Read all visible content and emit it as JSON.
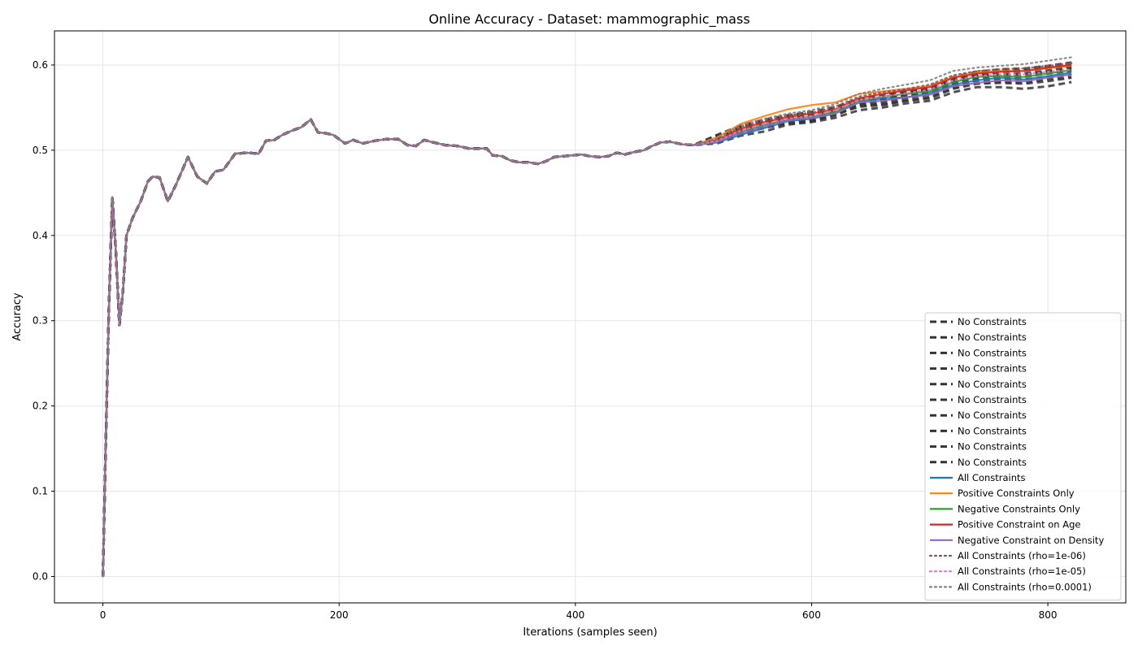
{
  "chart_data": {
    "type": "line",
    "title": "Online Accuracy - Dataset: mammographic_mass",
    "xlabel": "Iterations (samples seen)",
    "ylabel": "Accuracy",
    "xlim": [
      -41,
      866
    ],
    "ylim": [
      -0.031,
      0.64
    ],
    "xticks": [
      0,
      200,
      400,
      600,
      800
    ],
    "yticks": [
      0.0,
      0.1,
      0.2,
      0.3,
      0.4,
      0.5,
      0.6
    ],
    "grid": true,
    "legend_position": "bottom-right",
    "shared_prefix": {
      "x": [
        0,
        2,
        5,
        8,
        11,
        14,
        17,
        20,
        25,
        32,
        38,
        42,
        48,
        55,
        62,
        72,
        80,
        88,
        95,
        102,
        112,
        122,
        132,
        138,
        145,
        152,
        160,
        168,
        176,
        182,
        188,
        195,
        205,
        212,
        220,
        230,
        240,
        250,
        258,
        265,
        272,
        280,
        290,
        300,
        310,
        320,
        325,
        330,
        338,
        345,
        352,
        360,
        368,
        375,
        382,
        390,
        398,
        405,
        412,
        420,
        428,
        435,
        442,
        450,
        458,
        465,
        472,
        480,
        490,
        500
      ],
      "y": [
        0.0,
        0.13,
        0.31,
        0.445,
        0.38,
        0.295,
        0.335,
        0.4,
        0.42,
        0.44,
        0.463,
        0.469,
        0.468,
        0.44,
        0.46,
        0.492,
        0.469,
        0.461,
        0.475,
        0.477,
        0.496,
        0.497,
        0.496,
        0.511,
        0.512,
        0.518,
        0.523,
        0.527,
        0.536,
        0.521,
        0.52,
        0.518,
        0.508,
        0.512,
        0.508,
        0.511,
        0.513,
        0.513,
        0.506,
        0.505,
        0.512,
        0.509,
        0.506,
        0.505,
        0.502,
        0.502,
        0.502,
        0.494,
        0.493,
        0.488,
        0.486,
        0.486,
        0.484,
        0.487,
        0.492,
        0.493,
        0.494,
        0.495,
        0.493,
        0.492,
        0.493,
        0.497,
        0.495,
        0.498,
        0.5,
        0.505,
        0.509,
        0.51,
        0.507,
        0.506
      ]
    },
    "tail_x": [
      500,
      520,
      540,
      560,
      580,
      600,
      620,
      640,
      660,
      680,
      700,
      720,
      740,
      760,
      780,
      800,
      820
    ],
    "series": [
      {
        "name": "No Constraints",
        "style": "dashed",
        "color": "#333333",
        "tail": [
          0.506,
          0.517,
          0.527,
          0.533,
          0.539,
          0.541,
          0.547,
          0.556,
          0.563,
          0.568,
          0.571,
          0.583,
          0.589,
          0.592,
          0.593,
          0.596,
          0.598
        ]
      },
      {
        "name": "No Constraints",
        "style": "dashed",
        "color": "#333333",
        "tail": [
          0.506,
          0.511,
          0.521,
          0.527,
          0.531,
          0.534,
          0.541,
          0.552,
          0.554,
          0.558,
          0.562,
          0.573,
          0.579,
          0.58,
          0.579,
          0.583,
          0.586
        ]
      },
      {
        "name": "No Constraints",
        "style": "dashed",
        "color": "#333333",
        "tail": [
          0.506,
          0.513,
          0.524,
          0.53,
          0.536,
          0.538,
          0.545,
          0.555,
          0.558,
          0.563,
          0.567,
          0.578,
          0.584,
          0.586,
          0.586,
          0.59,
          0.593
        ]
      },
      {
        "name": "No Constraints",
        "style": "dashed",
        "color": "#333333",
        "tail": [
          0.506,
          0.508,
          0.517,
          0.522,
          0.53,
          0.533,
          0.538,
          0.547,
          0.55,
          0.555,
          0.558,
          0.568,
          0.574,
          0.574,
          0.572,
          0.575,
          0.58
        ]
      },
      {
        "name": "No Constraints",
        "style": "dashed",
        "color": "#333333",
        "tail": [
          0.506,
          0.514,
          0.526,
          0.532,
          0.538,
          0.54,
          0.546,
          0.556,
          0.561,
          0.566,
          0.57,
          0.581,
          0.587,
          0.589,
          0.59,
          0.593,
          0.597
        ]
      },
      {
        "name": "No Constraints",
        "style": "dashed",
        "color": "#333333",
        "tail": [
          0.506,
          0.516,
          0.528,
          0.534,
          0.54,
          0.543,
          0.549,
          0.559,
          0.563,
          0.568,
          0.573,
          0.584,
          0.59,
          0.593,
          0.594,
          0.597,
          0.6
        ]
      },
      {
        "name": "No Constraints",
        "style": "dashed",
        "color": "#333333",
        "tail": [
          0.506,
          0.512,
          0.522,
          0.528,
          0.534,
          0.536,
          0.543,
          0.553,
          0.556,
          0.561,
          0.565,
          0.576,
          0.582,
          0.583,
          0.583,
          0.586,
          0.589
        ]
      },
      {
        "name": "No Constraints",
        "style": "dashed",
        "color": "#333333",
        "tail": [
          0.506,
          0.515,
          0.525,
          0.531,
          0.537,
          0.539,
          0.546,
          0.555,
          0.56,
          0.565,
          0.569,
          0.58,
          0.586,
          0.588,
          0.589,
          0.592,
          0.595
        ]
      },
      {
        "name": "No Constraints",
        "style": "dashed",
        "color": "#333333",
        "tail": [
          0.506,
          0.51,
          0.52,
          0.526,
          0.532,
          0.535,
          0.542,
          0.551,
          0.553,
          0.558,
          0.561,
          0.572,
          0.578,
          0.579,
          0.578,
          0.581,
          0.585
        ]
      },
      {
        "name": "No Constraints",
        "style": "dashed",
        "color": "#333333",
        "tail": [
          0.506,
          0.518,
          0.529,
          0.536,
          0.541,
          0.545,
          0.551,
          0.56,
          0.565,
          0.57,
          0.575,
          0.586,
          0.592,
          0.595,
          0.596,
          0.599,
          0.603
        ]
      },
      {
        "name": "All Constraints",
        "style": "solid",
        "color": "#1f77b4",
        "tail": [
          0.506,
          0.509,
          0.518,
          0.526,
          0.534,
          0.537,
          0.543,
          0.556,
          0.561,
          0.562,
          0.567,
          0.577,
          0.582,
          0.585,
          0.583,
          0.587,
          0.591
        ]
      },
      {
        "name": "Positive Constraints Only",
        "style": "solid",
        "color": "#ff7f0e",
        "tail": [
          0.506,
          0.515,
          0.531,
          0.54,
          0.548,
          0.553,
          0.556,
          0.566,
          0.569,
          0.572,
          0.575,
          0.586,
          0.591,
          0.593,
          0.593,
          0.596,
          0.599
        ]
      },
      {
        "name": "Negative Constraints Only",
        "style": "solid",
        "color": "#2ca02c",
        "tail": [
          0.506,
          0.511,
          0.522,
          0.53,
          0.536,
          0.54,
          0.545,
          0.558,
          0.563,
          0.566,
          0.569,
          0.58,
          0.586,
          0.587,
          0.586,
          0.59,
          0.594
        ]
      },
      {
        "name": "Positive Constraint on Age",
        "style": "solid",
        "color": "#d62728",
        "tail": [
          0.506,
          0.512,
          0.525,
          0.533,
          0.539,
          0.543,
          0.548,
          0.561,
          0.566,
          0.57,
          0.574,
          0.585,
          0.59,
          0.592,
          0.593,
          0.597,
          0.6
        ]
      },
      {
        "name": "Negative Constraint on Density",
        "style": "solid",
        "color": "#9467bd",
        "tail": [
          0.506,
          0.51,
          0.52,
          0.528,
          0.535,
          0.538,
          0.543,
          0.556,
          0.558,
          0.562,
          0.565,
          0.575,
          0.579,
          0.582,
          0.581,
          0.585,
          0.589
        ]
      },
      {
        "name": "All Constraints (rho=1e-06)",
        "style": "dotted",
        "color": "#8c564b",
        "tail": [
          0.506,
          0.513,
          0.527,
          0.535,
          0.541,
          0.544,
          0.551,
          0.563,
          0.568,
          0.572,
          0.577,
          0.588,
          0.593,
          0.595,
          0.596,
          0.599,
          0.602
        ]
      },
      {
        "name": "All Constraints (rho=1e-05)",
        "style": "dotted",
        "color": "#e377c2",
        "tail": [
          0.506,
          0.511,
          0.523,
          0.531,
          0.537,
          0.54,
          0.547,
          0.559,
          0.563,
          0.567,
          0.571,
          0.582,
          0.587,
          0.589,
          0.589,
          0.592,
          0.595
        ]
      },
      {
        "name": "All Constraints (rho=0.0001)",
        "style": "dotted",
        "color": "#7f7f7f",
        "tail": [
          0.506,
          0.514,
          0.529,
          0.537,
          0.543,
          0.547,
          0.554,
          0.566,
          0.572,
          0.577,
          0.582,
          0.593,
          0.597,
          0.599,
          0.601,
          0.605,
          0.609
        ]
      }
    ]
  }
}
